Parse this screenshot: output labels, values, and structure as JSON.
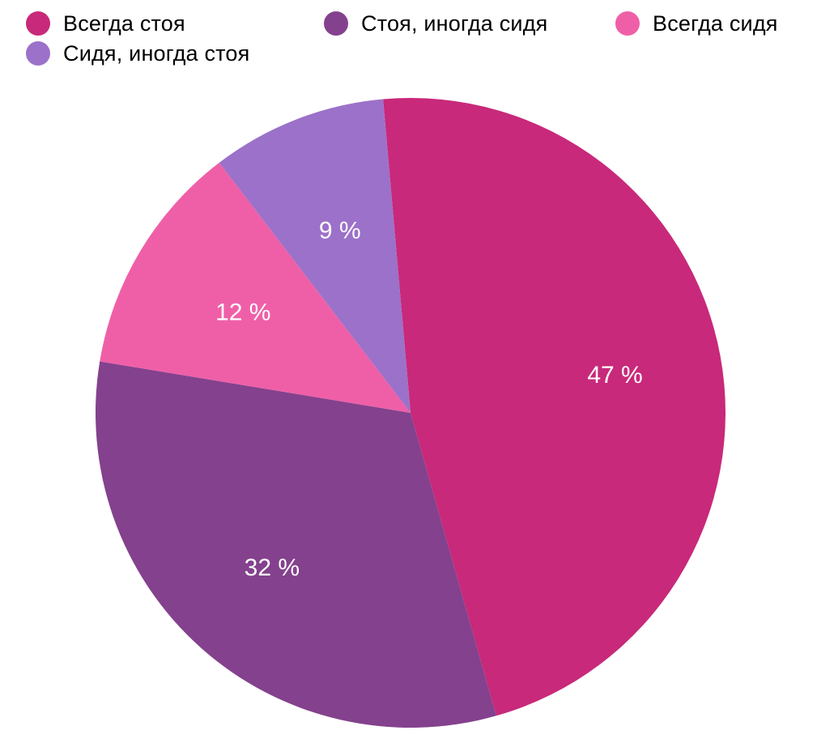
{
  "chart_data": {
    "type": "pie",
    "title": "",
    "legend": "top",
    "slices": [
      {
        "name": "Всегда стоя",
        "value": 47,
        "label": "47 %",
        "color": "#C8297A"
      },
      {
        "name": "Стоя, иногда сидя",
        "value": 32,
        "label": "32 %",
        "color": "#84418D"
      },
      {
        "name": "Всегда сидя",
        "value": 12,
        "label": "12 %",
        "color": "#EF5FA7"
      },
      {
        "name": "Сидя, иногда стоя",
        "value": 9,
        "label": "9 %",
        "color": "#9C71C9"
      }
    ]
  }
}
